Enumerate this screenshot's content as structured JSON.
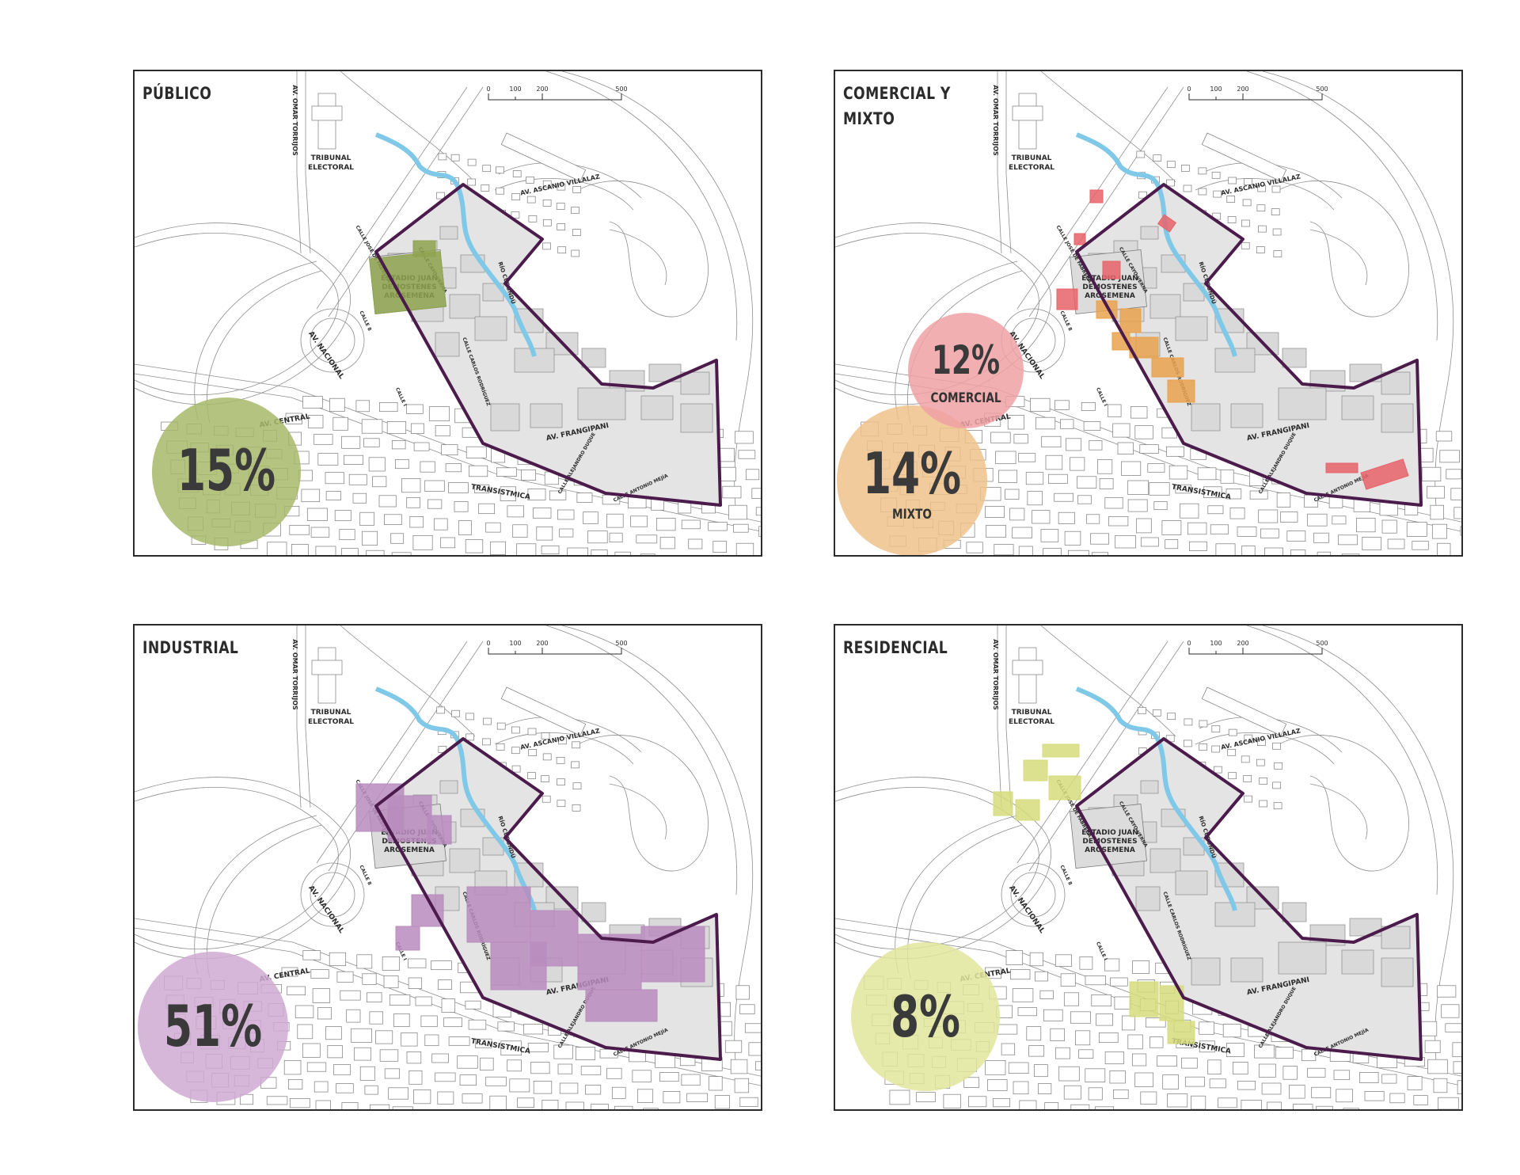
{
  "panels": [
    {
      "id": "publico",
      "title": "PÚBLICO",
      "percent": "15%",
      "sublabel": "",
      "highlight_color": "#8ea34f",
      "circle_color": "#a8b86a"
    },
    {
      "id": "comercial-mixto",
      "title": "COMERCIAL Y MIXTO",
      "percent_comercial": "12%",
      "sublabel_comercial": "COMERCIAL",
      "percent_mixto": "14%",
      "sublabel_mixto": "MIXTO",
      "comercial_color": "#e8636a",
      "mixto_color": "#e9a24d",
      "comercial_circle_color": "#f0a1a4",
      "mixto_circle_color": "#efc28a"
    },
    {
      "id": "industrial",
      "title": "INDUSTRIAL",
      "percent": "51%",
      "sublabel": "",
      "highlight_color": "#b88cbd",
      "circle_color": "#cfaad2"
    },
    {
      "id": "residencial",
      "title": "RESIDENCIAL",
      "percent": "8%",
      "sublabel": "",
      "highlight_color": "#d6dc7c",
      "circle_color": "#e1e59a"
    }
  ],
  "map_labels": {
    "omar_torrijos": "AV. OMAR TORRIJOS",
    "tribunal_1": "TRIBUNAL",
    "tribunal_2": "ELECTORAL",
    "ascanio": "AV. ASCANIO VILLALAZ",
    "rio": "RÍO CURUNDÚ",
    "estadio_1": "ESTADIO JUAN",
    "estadio_2": "DEMOSTENES",
    "estadio_3": "AROSEMENA",
    "nacional": "AV. NACIONAL",
    "central": "AV. CENTRAL",
    "frangipani": "AV. FRANGIPANI",
    "transistmica": "TRANSISTMICA",
    "calle_8": "CALLE 8",
    "calle_i": "CALLE I",
    "calle_jose_de_fabrega": "CALLE JOSÉ DE FÁBREGA",
    "calle_carlos_rodriguez": "CALLE CARLOS RODRÍGUEZ",
    "calle_cayo_bernal": "CALLE CAYO VERNA",
    "calle_alejandro_duque": "CALLE ALEJANDRO DUQUE",
    "calle_antonio_mejia": "CALLE ANTONIO MEJÍA"
  },
  "scale_bar": [
    "0",
    "100",
    "200",
    "500"
  ]
}
